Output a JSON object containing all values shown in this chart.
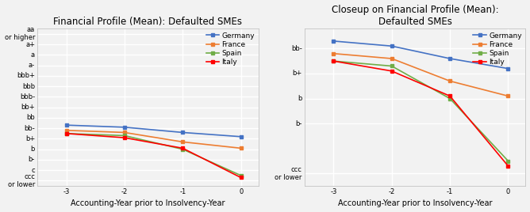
{
  "x": [
    -3,
    -2,
    -1,
    0
  ],
  "germany": [
    5.3,
    5.1,
    4.6,
    4.2
  ],
  "france": [
    4.8,
    4.6,
    3.7,
    3.1
  ],
  "spain": [
    4.5,
    4.3,
    3.0,
    0.5
  ],
  "italy": [
    4.5,
    4.1,
    3.1,
    0.3
  ],
  "germany_color": "#4472c4",
  "france_color": "#ed7d31",
  "spain_color": "#70ad47",
  "italy_color": "#ff0000",
  "title1": "Financial Profile (Mean): Defaulted SMEs",
  "title2": "Closeup on Financial Profile (Mean):\nDefaulted SMEs",
  "xlabel": "Accounting-Year prior to Insolvency-Year",
  "yticks_full": [
    0,
    1,
    2,
    3,
    4,
    5,
    6,
    7,
    8,
    9,
    10,
    11,
    12,
    13,
    14
  ],
  "ytick_labels_full": [
    "ccc\nor lower",
    "c",
    "b-",
    "b",
    "b+",
    "bb-",
    "bb",
    "bb+",
    "bbb-",
    "bbb",
    "bbb+",
    "a-",
    "a",
    "a+",
    "aa\nor higher"
  ],
  "ylim_full": [
    -0.5,
    14.5
  ],
  "yticks_zoom": [
    0,
    2,
    3,
    4,
    5
  ],
  "ytick_labels_zoom": [
    "ccc\nor lower",
    "b-",
    "b",
    "b+",
    "bb-"
  ],
  "ylim_zoom": [
    -0.5,
    5.8
  ],
  "bg_color": "#f2f2f2",
  "grid_color": "#ffffff",
  "marker": "s",
  "markersize": 3.5,
  "linewidth": 1.2,
  "fontsize_title": 8.5,
  "fontsize_tick": 6,
  "fontsize_legend": 6.5,
  "fontsize_xlabel": 7
}
